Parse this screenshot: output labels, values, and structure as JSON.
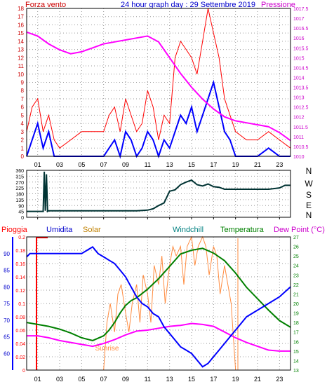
{
  "chart_data": [
    {
      "type": "line",
      "title": "24 hour graph day : 29 Settembre 2019",
      "left_axis_label": "Forza vento",
      "right_axis_label": "Pressione",
      "x_ticks": [
        "01",
        "03",
        "05",
        "07",
        "09",
        "11",
        "13",
        "15",
        "17",
        "19",
        "21",
        "23"
      ],
      "x_range": [
        0,
        24
      ],
      "left_ticks": [
        0,
        1,
        2,
        3,
        4,
        5,
        6,
        7,
        8,
        9,
        10,
        11,
        12,
        13,
        14,
        15,
        16,
        17,
        18
      ],
      "left_range": [
        0,
        18
      ],
      "right_ticks": [
        1010,
        1010.5,
        1011,
        1011.5,
        1012,
        1012.5,
        1013,
        1013.5,
        1014,
        1014.5,
        1015,
        1015.5,
        1016,
        1016.5,
        1017,
        1017.5
      ],
      "right_range": [
        1010,
        1017.5
      ],
      "grid": true,
      "colors": {
        "gust": "#ff0000",
        "wind": "#0000ff",
        "pressure": "#ff00ff"
      },
      "series": [
        {
          "name": "Forza vento",
          "kind": "wind_avg",
          "color": "#0000ff",
          "x": [
            0,
            0.5,
            1,
            1.5,
            2,
            2.5,
            3,
            4,
            5,
            6,
            7,
            7.5,
            8,
            8.5,
            9,
            9.5,
            10,
            10.5,
            11,
            11.5,
            12,
            12.5,
            13,
            13.5,
            14,
            14.5,
            15,
            15.5,
            16,
            16.5,
            17,
            17.5,
            18,
            18.5,
            19,
            20,
            21,
            22,
            23,
            24
          ],
          "values": [
            0,
            2,
            4,
            1,
            3,
            0,
            0,
            0,
            0,
            0,
            0,
            1,
            2,
            0,
            3,
            2,
            0,
            1,
            3,
            2,
            0,
            2,
            1,
            3,
            5,
            4,
            6,
            3,
            5,
            7,
            9,
            6,
            3,
            2,
            0,
            0,
            0,
            1,
            0,
            0
          ]
        },
        {
          "kind": "gust",
          "color": "#ff0000",
          "x": [
            0,
            0.5,
            1,
            1.5,
            2,
            2.5,
            3,
            4,
            5,
            6,
            7,
            7.5,
            8,
            8.5,
            9,
            9.5,
            10,
            10.5,
            11,
            11.5,
            12,
            12.5,
            13,
            13.5,
            14,
            14.5,
            15,
            15.5,
            16,
            16.5,
            17,
            17.5,
            18,
            18.5,
            19,
            20,
            21,
            22,
            23,
            24
          ],
          "values": [
            3,
            6,
            7,
            3,
            5,
            2,
            1,
            2,
            3,
            3,
            3,
            5,
            6,
            3,
            7,
            5,
            3,
            4,
            8,
            6,
            2,
            5,
            4,
            12,
            14,
            13,
            12,
            10,
            14,
            18,
            15,
            12,
            7,
            5,
            3,
            2,
            2,
            3,
            2,
            1
          ]
        },
        {
          "name": "Pressione",
          "kind": "pressure",
          "color": "#ff00ff",
          "axis": "right",
          "x": [
            0,
            1,
            2,
            3,
            4,
            5,
            6,
            7,
            8,
            9,
            10,
            11,
            12,
            13,
            14,
            15,
            16,
            17,
            18,
            19,
            20,
            21,
            22,
            23,
            24
          ],
          "values": [
            1016.3,
            1016.1,
            1015.7,
            1015.4,
            1015.2,
            1015.3,
            1015.5,
            1015.7,
            1015.8,
            1015.9,
            1016.0,
            1016.1,
            1015.8,
            1015.0,
            1014.2,
            1013.5,
            1012.9,
            1012.4,
            1012.0,
            1011.8,
            1011.7,
            1011.6,
            1011.5,
            1011.2,
            1010.8
          ]
        }
      ]
    },
    {
      "type": "line",
      "name_labels": [
        "N",
        "W",
        "S",
        "E",
        "N"
      ],
      "y_ticks": [
        0,
        45,
        90,
        135,
        180,
        225,
        270,
        315,
        360
      ],
      "y_range": [
        0,
        360
      ],
      "x_ticks": [
        "01",
        "03",
        "05",
        "07",
        "09",
        "11",
        "13",
        "15",
        "17",
        "19",
        "21",
        "23"
      ],
      "x_range": [
        0,
        24
      ],
      "grid": true,
      "series": [
        {
          "kind": "wind_direction",
          "color": "#003333",
          "x": [
            0,
            1.5,
            1.6,
            1.7,
            1.8,
            1.9,
            2,
            4,
            6,
            8,
            10,
            11,
            11.5,
            12,
            12.5,
            13,
            13.5,
            14,
            14.5,
            15,
            15.5,
            16,
            16.5,
            17,
            17.5,
            18,
            19,
            20,
            21,
            22,
            23,
            23.5,
            24
          ],
          "values": [
            45,
            45,
            350,
            50,
            330,
            45,
            50,
            50,
            50,
            50,
            50,
            55,
            65,
            90,
            110,
            200,
            210,
            250,
            270,
            285,
            250,
            240,
            255,
            235,
            230,
            215,
            215,
            215,
            215,
            215,
            225,
            245,
            245
          ]
        }
      ]
    },
    {
      "type": "line",
      "legend": [
        "Pioggia",
        "Umidita",
        "Solar",
        "Windchill",
        "Temperatura",
        "Dew Point (°C)"
      ],
      "colors": {
        "rain": "#ff0000",
        "humidity": "#0000ff",
        "solar": "#ff8c40",
        "windchill": "#008080",
        "temperature": "#008000",
        "dewpoint": "#ff00ff"
      },
      "rain_ticks": [
        0,
        0.02,
        0.04,
        0.06,
        0.08,
        0.1,
        0.12,
        0.14,
        0.16,
        0.18,
        0.2
      ],
      "humidity_ticks": [
        60,
        65,
        70,
        75,
        80,
        85,
        90
      ],
      "temp_ticks": [
        13,
        14,
        15,
        16,
        17,
        18,
        19,
        20,
        21,
        22,
        23,
        24,
        25,
        26,
        27
      ],
      "rain_range": [
        0,
        0.2
      ],
      "humidity_range": [
        55,
        95
      ],
      "temp_range": [
        13,
        27
      ],
      "x_ticks": [
        "01",
        "03",
        "05",
        "07",
        "09",
        "11",
        "13",
        "15",
        "17",
        "19",
        "21",
        "23"
      ],
      "x_range": [
        0,
        24
      ],
      "annotations": [
        {
          "text": "Sunrise",
          "x": 7.5
        }
      ],
      "grid": true,
      "series": [
        {
          "name": "Umidita",
          "color": "#0000ff",
          "axis": "humidity",
          "x": [
            0,
            0.3,
            1,
            2,
            3,
            4,
            5,
            5.5,
            6,
            6.5,
            7,
            7.5,
            8,
            8.5,
            9,
            9.5,
            10,
            10.5,
            11,
            11.5,
            12,
            12.5,
            13,
            13.5,
            14,
            14.5,
            15,
            15.5,
            16,
            16.5,
            17,
            17.5,
            18,
            18.5,
            19,
            19.5,
            20,
            21,
            22,
            23,
            24
          ],
          "values": [
            89,
            90,
            90,
            90,
            90,
            90,
            90,
            91,
            92,
            90,
            89,
            88,
            87,
            85,
            83,
            80,
            77,
            75,
            74,
            72,
            71,
            68,
            66,
            64,
            62,
            61,
            60,
            58,
            56,
            57,
            59,
            61,
            63,
            65,
            67,
            69,
            71,
            73,
            75,
            77,
            80
          ]
        },
        {
          "name": "Temperatura",
          "color": "#008000",
          "axis": "temp",
          "x": [
            0,
            1,
            2,
            3,
            4,
            5,
            6,
            7,
            7.5,
            8,
            8.5,
            9,
            9.5,
            10,
            11,
            12,
            13,
            14,
            15,
            16,
            17,
            18,
            19,
            20,
            21,
            22,
            23,
            24
          ],
          "values": [
            18,
            17.8,
            17.6,
            17.3,
            16.9,
            16.4,
            16.1,
            16.6,
            17.2,
            18,
            19,
            19.8,
            20.3,
            20.6,
            21.5,
            22.6,
            23.9,
            25.2,
            25.6,
            25.8,
            25.3,
            24.5,
            23.2,
            21.7,
            20.5,
            19.3,
            18.2,
            17.5
          ]
        },
        {
          "name": "Dew Point (°C)",
          "color": "#ff00ff",
          "axis": "temp",
          "x": [
            0,
            1,
            2,
            3,
            4,
            5,
            6,
            7,
            8,
            9,
            10,
            11,
            12,
            13,
            14,
            15,
            16,
            17,
            18,
            19,
            20,
            21,
            22,
            23,
            24
          ],
          "values": [
            16.6,
            16.6,
            16.4,
            16.1,
            15.9,
            15.7,
            15.5,
            15.8,
            16.2,
            16.7,
            17.1,
            17.2,
            17.4,
            17.6,
            17.7,
            17.9,
            17.8,
            17.6,
            17.0,
            16.4,
            15.9,
            15.5,
            15.1,
            15.0,
            15.0
          ]
        },
        {
          "name": "Solar",
          "color": "#ff8c40",
          "axis": "temp",
          "x": [
            7,
            7.3,
            7.6,
            8,
            8.3,
            8.6,
            9,
            9.3,
            9.6,
            10,
            10.3,
            10.6,
            11,
            11.3,
            11.6,
            12,
            12.3,
            12.6,
            13,
            13.3,
            13.6,
            14,
            14.3,
            14.6,
            15,
            15.3,
            15.6,
            16,
            16.3,
            16.6,
            17,
            17.3,
            17.6,
            18,
            18.3,
            18.6,
            19
          ],
          "values": [
            13,
            18,
            20,
            17,
            21,
            22,
            19,
            17,
            20,
            22,
            18,
            23,
            21,
            18,
            24,
            22,
            25,
            20,
            24,
            26,
            25,
            26,
            22,
            26,
            27,
            24,
            26,
            27,
            26,
            23,
            26,
            25,
            21,
            24,
            22,
            20,
            13
          ]
        },
        {
          "name": "Pioggia",
          "color": "#ff0000",
          "axis": "rain",
          "x": [
            0,
            24
          ],
          "values": [
            0,
            0
          ]
        }
      ]
    }
  ]
}
